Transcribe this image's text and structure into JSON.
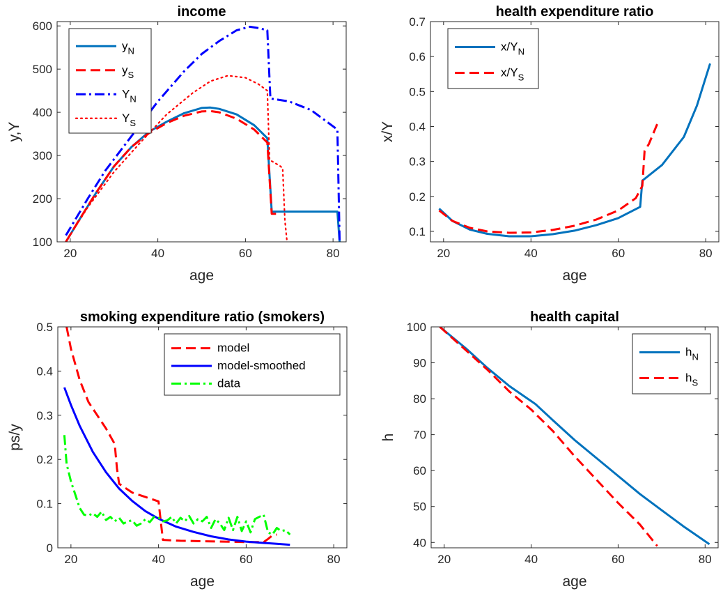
{
  "chart_data": [
    {
      "type": "line",
      "title": "income",
      "xlabel": "age",
      "ylabel": "y,Y",
      "xlim": [
        17,
        83
      ],
      "ylim": [
        100,
        610
      ],
      "xticks": [
        20,
        40,
        60,
        80
      ],
      "yticks": [
        100,
        200,
        300,
        400,
        500,
        600
      ],
      "legend": "top-left",
      "grid": false,
      "series": [
        {
          "name": "y",
          "sub": "N",
          "color": "#0072BD",
          "dash": "solid",
          "x": [
            19,
            22,
            26,
            30,
            34,
            38,
            42,
            46,
            50,
            52,
            54,
            58,
            62,
            65,
            66,
            70,
            75,
            81,
            81.5
          ],
          "y": [
            100,
            150,
            215,
            275,
            320,
            355,
            378,
            398,
            410,
            411,
            408,
            395,
            370,
            340,
            170,
            170,
            170,
            170,
            100
          ]
        },
        {
          "name": "y",
          "sub": "S",
          "color": "#FF0000",
          "dash": "dash",
          "x": [
            19,
            22,
            26,
            30,
            34,
            38,
            42,
            46,
            50,
            52,
            54,
            58,
            62,
            65,
            66,
            67
          ],
          "y": [
            100,
            150,
            215,
            275,
            320,
            352,
            375,
            392,
            402,
            403,
            400,
            385,
            360,
            330,
            165,
            165
          ]
        },
        {
          "name": "Y",
          "sub": "N",
          "color": "#0000FF",
          "dash": "dashdot",
          "x": [
            19,
            24,
            28,
            34,
            40,
            46,
            50,
            54,
            58,
            61,
            63,
            65,
            65.7,
            70,
            75,
            81,
            81.5
          ],
          "y": [
            115,
            200,
            265,
            345,
            425,
            495,
            535,
            565,
            590,
            598,
            595,
            590,
            432,
            425,
            405,
            360,
            100
          ]
        },
        {
          "name": "Y",
          "sub": "S",
          "color": "#FF0000",
          "dash": "dot",
          "x": [
            19,
            24,
            30,
            36,
            42,
            48,
            52,
            56,
            60,
            63,
            65,
            65.5,
            68,
            68.5,
            69,
            69.5
          ],
          "y": [
            100,
            180,
            262,
            330,
            395,
            445,
            472,
            485,
            480,
            465,
            450,
            290,
            275,
            270,
            150,
            100
          ]
        }
      ]
    },
    {
      "type": "line",
      "title": "health expenditure ratio",
      "xlabel": "age",
      "ylabel": "x/Y",
      "xlim": [
        17,
        83
      ],
      "ylim": [
        0.07,
        0.7
      ],
      "xticks": [
        20,
        40,
        60,
        80
      ],
      "yticks": [
        0.1,
        0.2,
        0.3,
        0.4,
        0.5,
        0.6,
        0.7
      ],
      "legend": "top-left",
      "grid": false,
      "series": [
        {
          "name": "x/Y",
          "sub": "N",
          "color": "#0072BD",
          "dash": "solid",
          "x": [
            19,
            22,
            26,
            30,
            35,
            40,
            45,
            50,
            55,
            60,
            65,
            65.5,
            70,
            75,
            78,
            81
          ],
          "y": [
            0.165,
            0.13,
            0.105,
            0.093,
            0.086,
            0.086,
            0.092,
            0.102,
            0.118,
            0.138,
            0.17,
            0.245,
            0.29,
            0.37,
            0.46,
            0.58
          ]
        },
        {
          "name": "x/Y",
          "sub": "S",
          "color": "#FF0000",
          "dash": "dash",
          "x": [
            19,
            22,
            26,
            30,
            35,
            40,
            45,
            50,
            55,
            60,
            64,
            65.5,
            66,
            67,
            68,
            69
          ],
          "y": [
            0.16,
            0.13,
            0.11,
            0.1,
            0.096,
            0.097,
            0.104,
            0.116,
            0.134,
            0.16,
            0.195,
            0.23,
            0.33,
            0.35,
            0.38,
            0.41
          ]
        }
      ]
    },
    {
      "type": "line",
      "title": "smoking expenditure ratio (smokers)",
      "xlabel": "age",
      "ylabel": "ps/y",
      "xlim": [
        17,
        83
      ],
      "ylim": [
        0,
        0.5
      ],
      "xticks": [
        20,
        40,
        60,
        80
      ],
      "yticks": [
        0,
        0.1,
        0.2,
        0.3,
        0.4,
        0.5
      ],
      "legend": "top-right",
      "grid": false,
      "series": [
        {
          "name": "model",
          "color": "#FF0000",
          "dash": "dash",
          "x": [
            19,
            20,
            22,
            24,
            26,
            28,
            30,
            30.5,
            31,
            34,
            37,
            40,
            40.5,
            41,
            45,
            50,
            55,
            60,
            64,
            65,
            66,
            67
          ],
          "y": [
            0.5,
            0.45,
            0.38,
            0.33,
            0.3,
            0.27,
            0.235,
            0.18,
            0.145,
            0.125,
            0.115,
            0.105,
            0.06,
            0.018,
            0.016,
            0.015,
            0.014,
            0.013,
            0.013,
            0.02,
            0.028,
            0.03
          ]
        },
        {
          "name": "model-smoothed",
          "color": "#0000FF",
          "dash": "solid",
          "x": [
            18.5,
            20,
            22,
            25,
            28,
            31,
            34,
            37,
            40,
            44,
            48,
            52,
            56,
            60,
            64,
            67,
            70
          ],
          "y": [
            0.363,
            0.323,
            0.276,
            0.217,
            0.171,
            0.134,
            0.106,
            0.083,
            0.066,
            0.048,
            0.036,
            0.026,
            0.019,
            0.014,
            0.011,
            0.009,
            0.007
          ]
        },
        {
          "name": "data",
          "color": "#00FF00",
          "dash": "dashdot",
          "x": [
            18.5,
            19,
            20,
            21,
            22,
            23,
            24,
            25,
            26,
            27,
            28,
            29,
            30,
            31,
            32,
            33,
            34,
            35,
            36,
            37,
            38,
            39,
            40,
            41,
            42,
            43,
            44,
            45,
            46,
            47,
            48,
            49,
            50,
            51,
            52,
            53,
            54,
            55,
            56,
            57,
            58,
            59,
            60,
            61,
            62,
            63,
            64,
            65,
            66,
            67,
            68,
            69,
            70
          ],
          "y": [
            0.255,
            0.19,
            0.15,
            0.12,
            0.09,
            0.075,
            0.073,
            0.078,
            0.07,
            0.082,
            0.063,
            0.07,
            0.06,
            0.068,
            0.055,
            0.06,
            0.062,
            0.05,
            0.055,
            0.065,
            0.058,
            0.07,
            0.068,
            0.06,
            0.062,
            0.07,
            0.055,
            0.068,
            0.06,
            0.072,
            0.055,
            0.065,
            0.06,
            0.07,
            0.045,
            0.065,
            0.055,
            0.04,
            0.068,
            0.04,
            0.07,
            0.038,
            0.06,
            0.035,
            0.065,
            0.07,
            0.075,
            0.035,
            0.03,
            0.045,
            0.038,
            0.04,
            0.03
          ]
        }
      ]
    },
    {
      "type": "line",
      "title": "health capital",
      "xlabel": "age",
      "ylabel": "h",
      "xlim": [
        17,
        83
      ],
      "ylim": [
        38.5,
        100
      ],
      "xticks": [
        20,
        40,
        60,
        80
      ],
      "yticks": [
        40,
        50,
        60,
        70,
        80,
        90,
        100
      ],
      "legend": "top-right",
      "grid": false,
      "series": [
        {
          "name": "h",
          "sub": "N",
          "color": "#0072BD",
          "dash": "solid",
          "x": [
            19,
            25,
            30,
            35,
            41,
            45,
            50,
            55,
            60,
            65,
            70,
            75,
            81
          ],
          "y": [
            100,
            94,
            88.5,
            83.5,
            78.5,
            74,
            68.5,
            63.5,
            58.5,
            53.5,
            49,
            44.5,
            39.5
          ]
        },
        {
          "name": "h",
          "sub": "S",
          "color": "#FF0000",
          "dash": "dash",
          "x": [
            19,
            25,
            30,
            35,
            40,
            45,
            50,
            55,
            60,
            65,
            69
          ],
          "y": [
            100,
            93.5,
            88,
            82,
            77,
            71,
            64,
            57.5,
            51,
            45,
            39
          ]
        }
      ]
    }
  ]
}
